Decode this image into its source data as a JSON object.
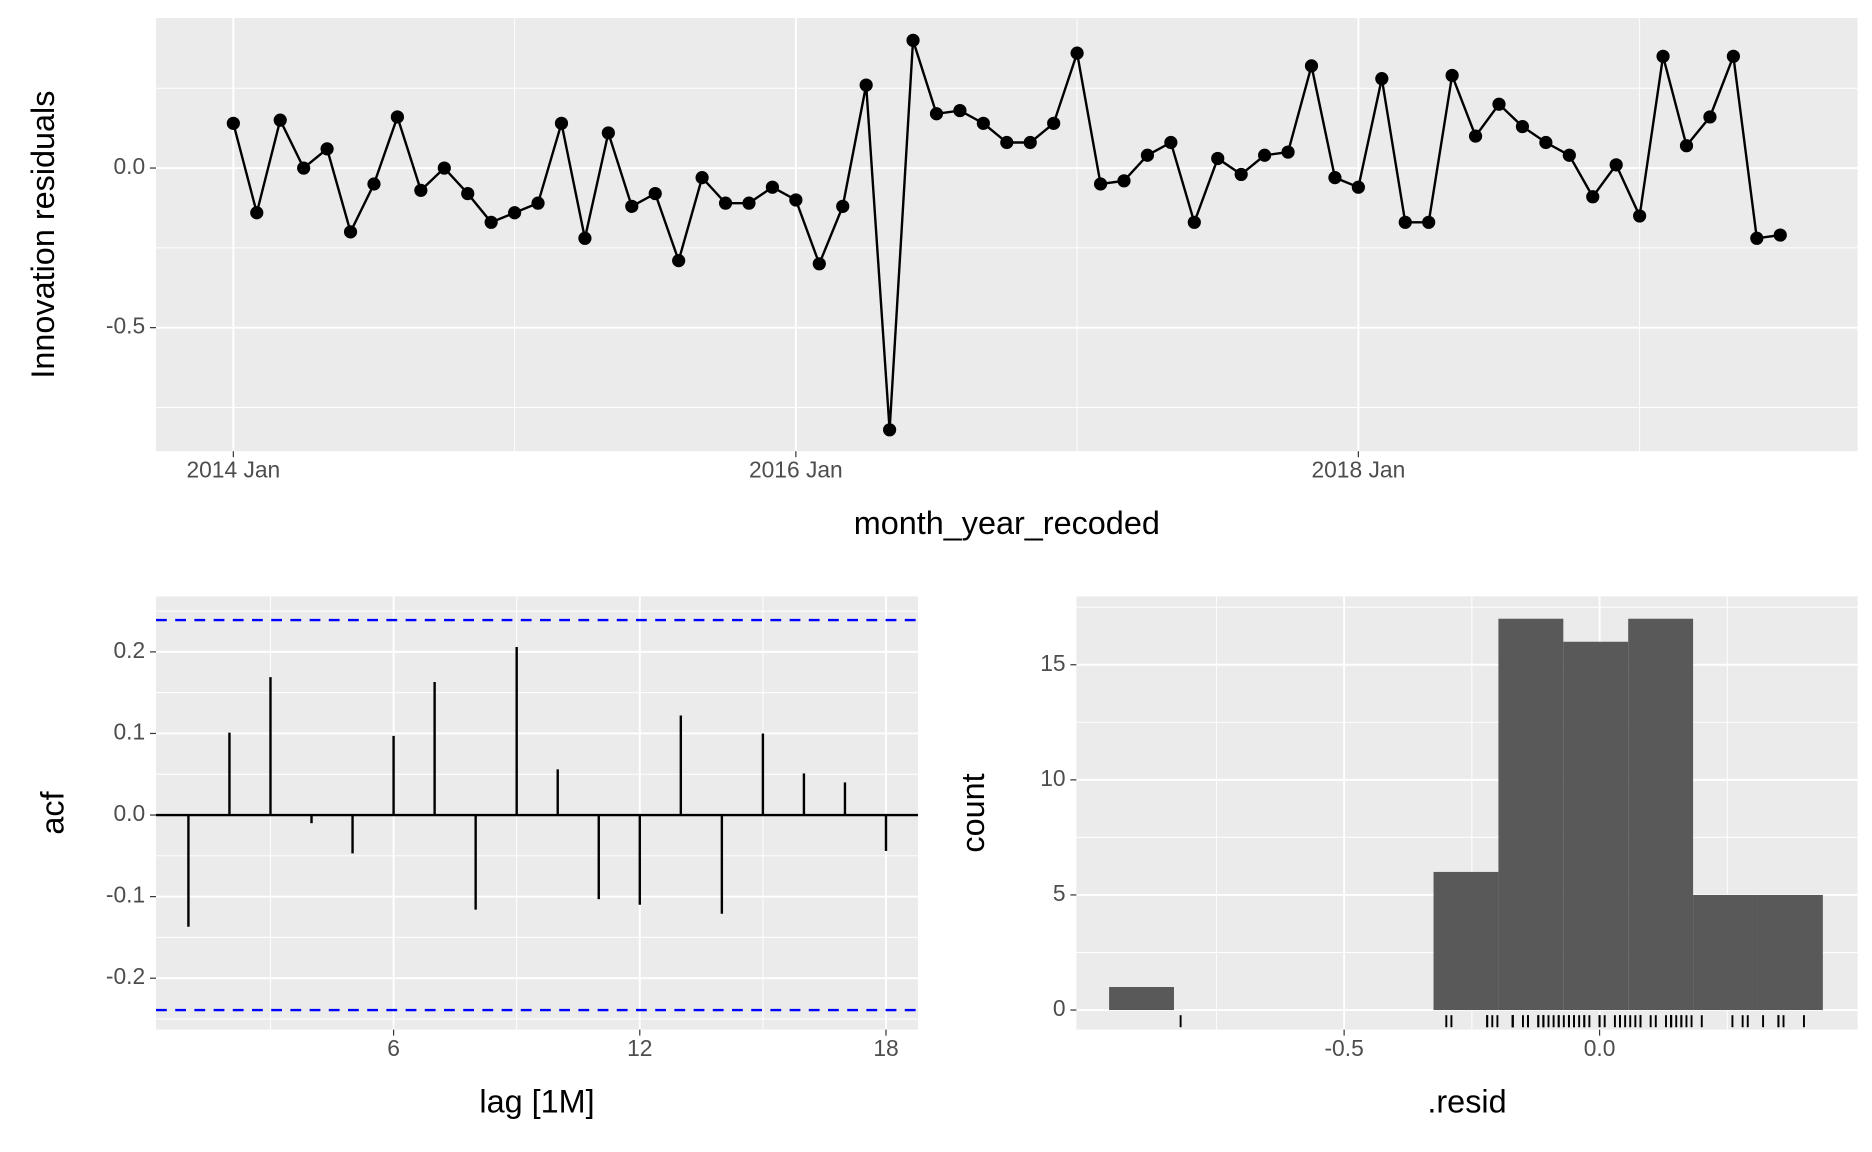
{
  "chart_data": [
    {
      "type": "line",
      "ylabel": "Innovation residuals",
      "xlabel": "month_year_recoded",
      "color": "#000000",
      "x": [
        "2014 Jan",
        "2014 Feb",
        "2014 Mar",
        "2014 Apr",
        "2014 May",
        "2014 Jun",
        "2014 Jul",
        "2014 Aug",
        "2014 Sep",
        "2014 Oct",
        "2014 Nov",
        "2014 Dec",
        "2015 Jan",
        "2015 Feb",
        "2015 Mar",
        "2015 Apr",
        "2015 May",
        "2015 Jun",
        "2015 Jul",
        "2015 Aug",
        "2015 Sep",
        "2015 Oct",
        "2015 Nov",
        "2015 Dec",
        "2016 Jan",
        "2016 Feb",
        "2016 Mar",
        "2016 Apr",
        "2016 May",
        "2016 Jun",
        "2016 Jul",
        "2016 Aug",
        "2016 Sep",
        "2016 Oct",
        "2016 Nov",
        "2016 Dec",
        "2017 Jan",
        "2017 Feb",
        "2017 Mar",
        "2017 Apr",
        "2017 May",
        "2017 Jun",
        "2017 Jul",
        "2017 Aug",
        "2017 Sep",
        "2017 Oct",
        "2017 Nov",
        "2017 Dec",
        "2018 Jan",
        "2018 Feb",
        "2018 Mar",
        "2018 Apr",
        "2018 May",
        "2018 Jun",
        "2018 Jul",
        "2018 Aug",
        "2018 Sep",
        "2018 Oct",
        "2018 Nov",
        "2018 Dec",
        "2019 Jan",
        "2019 Feb",
        "2019 Mar",
        "2019 Apr",
        "2019 May",
        "2019 Jun",
        "2019 Jul"
      ],
      "values": [
        0.14,
        -0.14,
        0.15,
        0.0,
        0.06,
        -0.2,
        -0.05,
        0.16,
        -0.07,
        0.0,
        -0.08,
        -0.17,
        -0.14,
        -0.11,
        0.14,
        -0.22,
        0.11,
        -0.12,
        -0.08,
        -0.29,
        -0.03,
        -0.11,
        -0.11,
        -0.06,
        -0.1,
        -0.3,
        -0.12,
        0.26,
        -0.82,
        0.4,
        0.17,
        0.18,
        0.14,
        0.08,
        0.08,
        0.14,
        0.36,
        -0.05,
        -0.04,
        0.04,
        0.08,
        -0.17,
        0.03,
        -0.02,
        0.04,
        0.05,
        0.32,
        -0.03,
        -0.06,
        0.28,
        -0.17,
        -0.17,
        0.29,
        0.1,
        0.2,
        0.13,
        0.08,
        0.04,
        -0.09,
        0.01,
        -0.15,
        0.35,
        0.07,
        0.16,
        0.35,
        -0.22,
        -0.21
      ],
      "xticks": [
        "2014 Jan",
        "2016 Jan",
        "2018 Jan"
      ],
      "ylim": [
        -0.887,
        0.47
      ],
      "yticks": [
        -0.5,
        {
          "value": 0,
          "label": "0.0"
        }
      ],
      "grid": true
    },
    {
      "type": "acf",
      "ylabel": "acf",
      "xlabel": "lag [1M]",
      "color": "#000000",
      "x": [
        1,
        2,
        3,
        4,
        5,
        6,
        7,
        8,
        9,
        10,
        11,
        12,
        13,
        14,
        15,
        16,
        17,
        18
      ],
      "values": [
        -0.137,
        0.101,
        0.169,
        -0.01,
        -0.047,
        0.097,
        0.163,
        -0.116,
        0.206,
        0.056,
        -0.103,
        -0.11,
        0.122,
        -0.121,
        0.1,
        0.051,
        0.04,
        -0.044
      ],
      "ci": [
        0.239,
        -0.239
      ],
      "ci_color": "#0000ff",
      "xlim": [
        0.21,
        18.78
      ],
      "xticks": [
        6,
        12,
        18
      ],
      "ylim": [
        -0.263,
        0.268
      ],
      "yticks": [
        -0.2,
        -0.1,
        {
          "value": 0,
          "label": "0.0"
        },
        0.1,
        0.2
      ],
      "grid": true
    },
    {
      "type": "histogram",
      "ylabel": "count",
      "xlabel": ".resid",
      "color": "#595959",
      "bins": [
        -0.96,
        -0.833,
        -0.706,
        -0.579,
        -0.452,
        -0.325,
        -0.198,
        -0.071,
        0.056,
        0.183,
        0.31,
        0.437
      ],
      "values": [
        1,
        0,
        0,
        0,
        0,
        6,
        17,
        16,
        17,
        5,
        5
      ],
      "xlim": [
        -1.024,
        0.505
      ],
      "xticks": [
        -0.5,
        {
          "value": 0,
          "label": "0.0"
        }
      ],
      "ylim": [
        -0.85,
        17.97
      ],
      "yticks": [
        0,
        5,
        10,
        15
      ],
      "grid": true
    }
  ]
}
